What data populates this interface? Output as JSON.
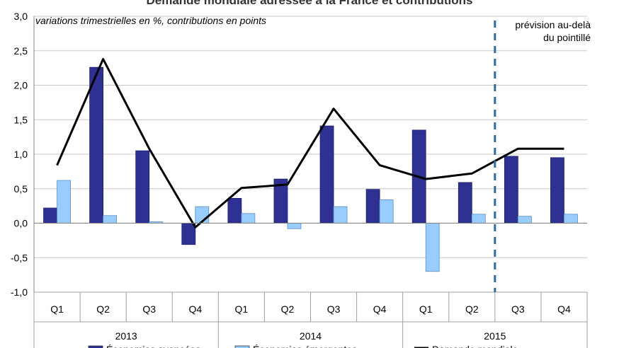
{
  "chart_data": {
    "type": "bar",
    "title": "Demande mondiale adressée à la France et contributions",
    "subtitle": "variations trimestrielles en %, contributions en points",
    "quarters": [
      "Q1",
      "Q2",
      "Q3",
      "Q4",
      "Q1",
      "Q2",
      "Q3",
      "Q4",
      "Q1",
      "Q2",
      "Q3",
      "Q4"
    ],
    "years": [
      {
        "label": "2013",
        "quarters": 4
      },
      {
        "label": "2014",
        "quarters": 4
      },
      {
        "label": "2015",
        "quarters": 4
      }
    ],
    "ylim": [
      -1.0,
      3.0
    ],
    "y_ticks": [
      "-1,0",
      "-0,5",
      "0,0",
      "0,5",
      "1,0",
      "1,5",
      "2,0",
      "2,5",
      "3,0"
    ],
    "grid": true,
    "series": [
      {
        "name": "Économies avancées",
        "type": "bar",
        "color": "#2e3192",
        "values": [
          0.22,
          2.26,
          1.05,
          -0.31,
          0.36,
          0.64,
          1.41,
          0.49,
          1.35,
          0.59,
          0.97,
          0.95
        ]
      },
      {
        "name": "Économies émergentes",
        "type": "bar",
        "color": "#99ccff",
        "values": [
          0.62,
          0.11,
          0.02,
          0.24,
          0.14,
          -0.08,
          0.24,
          0.34,
          -0.7,
          0.13,
          0.1,
          0.13
        ]
      },
      {
        "name": "Demande mondiale",
        "type": "line",
        "color": "#000000",
        "values": [
          0.84,
          2.38,
          1.08,
          -0.06,
          0.51,
          0.56,
          1.66,
          0.84,
          0.64,
          0.72,
          1.08,
          1.08
        ]
      }
    ],
    "forecast_note": "prévision au-delà du pointillé",
    "forecast_note_lines": [
      "prévision au-delà",
      "du pointillé"
    ],
    "forecast_after_index": 9
  }
}
